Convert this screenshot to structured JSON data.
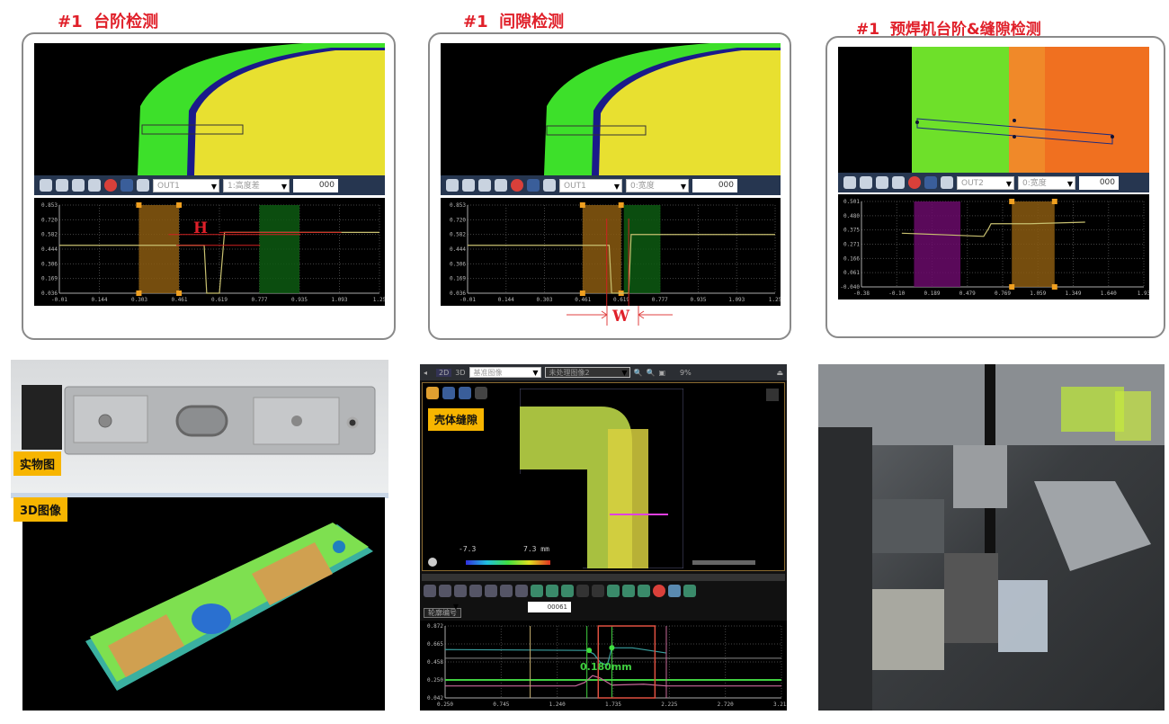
{
  "panels": [
    {
      "title": "#1  台阶检测",
      "out_select": "OUT1",
      "mode_select": "1:高度差",
      "value": "000",
      "dim_label": "H",
      "chart": {
        "type": "line",
        "xlim": [
          -0.01,
          1.25
        ],
        "ylim": [
          0.036,
          0.853
        ],
        "xticks": [
          "-0.01",
          "0.144",
          "0.303",
          "0.461",
          "0.619",
          "0.777",
          "0.935",
          "1.093",
          "1.25"
        ],
        "yticks": [
          "0.853",
          "0.720",
          "0.582",
          "0.444",
          "0.306",
          "0.169",
          "0.036"
        ],
        "line": [
          [
            -0.01,
            0.48
          ],
          [
            0.56,
            0.48
          ],
          [
            0.57,
            0.036
          ],
          [
            0.62,
            0.036
          ],
          [
            0.64,
            0.6
          ],
          [
            1.25,
            0.6
          ]
        ],
        "bands": [
          {
            "x": [
              0.303,
              0.461
            ],
            "color": "#8a5a10"
          },
          {
            "x": [
              0.777,
              0.935
            ],
            "color": "#0d5a12"
          }
        ]
      }
    },
    {
      "title": "#1  间隙检测",
      "out_select": "OUT1",
      "mode_select": "0:宽度",
      "value": "000",
      "dim_label": "W",
      "chart": {
        "type": "line",
        "xlim": [
          -0.01,
          1.25
        ],
        "ylim": [
          0.036,
          0.853
        ],
        "xticks": [
          "-0.01",
          "0.144",
          "0.303",
          "0.461",
          "0.619",
          "0.777",
          "0.935",
          "1.093",
          "1.25"
        ],
        "yticks": [
          "0.853",
          "0.720",
          "0.582",
          "0.444",
          "0.306",
          "0.169",
          "0.036"
        ],
        "line": [
          [
            -0.01,
            0.48
          ],
          [
            0.57,
            0.48
          ],
          [
            0.58,
            0.036
          ],
          [
            0.65,
            0.036
          ],
          [
            0.66,
            0.58
          ],
          [
            1.25,
            0.58
          ]
        ],
        "bands": [
          {
            "x": [
              0.461,
              0.619
            ],
            "color": "#8a5a10"
          },
          {
            "x": [
              0.63,
              0.78
            ],
            "color": "#0d5a12"
          }
        ]
      }
    },
    {
      "title": "#1  预焊机台阶&缝隙检测",
      "out_select": "OUT2",
      "mode_select": "0:宽度",
      "value": "000",
      "chart": {
        "type": "line",
        "xlim": [
          -0.38,
          1.93
        ],
        "ylim": [
          -0.04,
          0.501
        ],
        "xticks": [
          "-0.38",
          "-0.10",
          "0.189",
          "0.479",
          "0.769",
          "1.059",
          "1.349",
          "1.640",
          "1.93"
        ],
        "yticks": [
          "0.501",
          "0.480",
          "0.375",
          "0.271",
          "0.166",
          "0.061",
          "-0.040"
        ],
        "line": [
          [
            -0.05,
            0.3
          ],
          [
            0.3,
            0.29
          ],
          [
            0.62,
            0.28
          ],
          [
            0.66,
            0.33
          ],
          [
            0.68,
            0.36
          ],
          [
            1.0,
            0.36
          ],
          [
            1.45,
            0.37
          ]
        ],
        "bands": [
          {
            "x": [
              0.05,
              0.43
            ],
            "color": "#6a0a6a"
          },
          {
            "x": [
              0.85,
              1.2
            ],
            "color": "#8a5a10"
          }
        ]
      }
    }
  ],
  "photo": {
    "label": "实物图"
  },
  "scan3d": {
    "label": "3D图像"
  },
  "software": {
    "view_2d": "2D",
    "view_3d": "3D",
    "image_select": "基准图像",
    "image_select2": "未处理图像2",
    "zoom": "9%",
    "tag": "壳体缝隙",
    "scale_min": "-7.3",
    "scale_max": "7.3 mm",
    "profile_select": "轮廓编号",
    "profile_value": "00061",
    "measure_label": "0.180mm",
    "chart": {
      "type": "line",
      "xlim": [
        0.25,
        3.215
      ],
      "ylim": [
        0.042,
        0.872
      ],
      "unit": "mm",
      "xticks": [
        "0.250",
        "0.745",
        "1.240",
        "1.735",
        "2.225",
        "2.720",
        "3.215"
      ],
      "yticks": [
        "0.872",
        "0.665",
        "0.458",
        "0.250",
        "0.042"
      ],
      "series": [
        {
          "color": "#3aa0a0",
          "values": [
            [
              0.25,
              0.6
            ],
            [
              1.5,
              0.59
            ],
            [
              1.56,
              0.55
            ],
            [
              1.62,
              0.45
            ],
            [
              1.68,
              0.42
            ],
            [
              1.72,
              0.62
            ],
            [
              1.9,
              0.62
            ],
            [
              2.2,
              0.56
            ]
          ]
        },
        {
          "color": "#c86a9a",
          "values": [
            [
              0.25,
              0.18
            ],
            [
              1.4,
              0.18
            ],
            [
              1.48,
              0.22
            ],
            [
              1.55,
              0.3
            ],
            [
              1.62,
              0.27
            ],
            [
              1.72,
              0.19
            ],
            [
              2.0,
              0.2
            ],
            [
              2.2,
              0.18
            ],
            [
              3.215,
              0.18
            ]
          ]
        }
      ],
      "hlines": [
        0.25,
        0.5
      ]
    }
  },
  "machine": {}
}
